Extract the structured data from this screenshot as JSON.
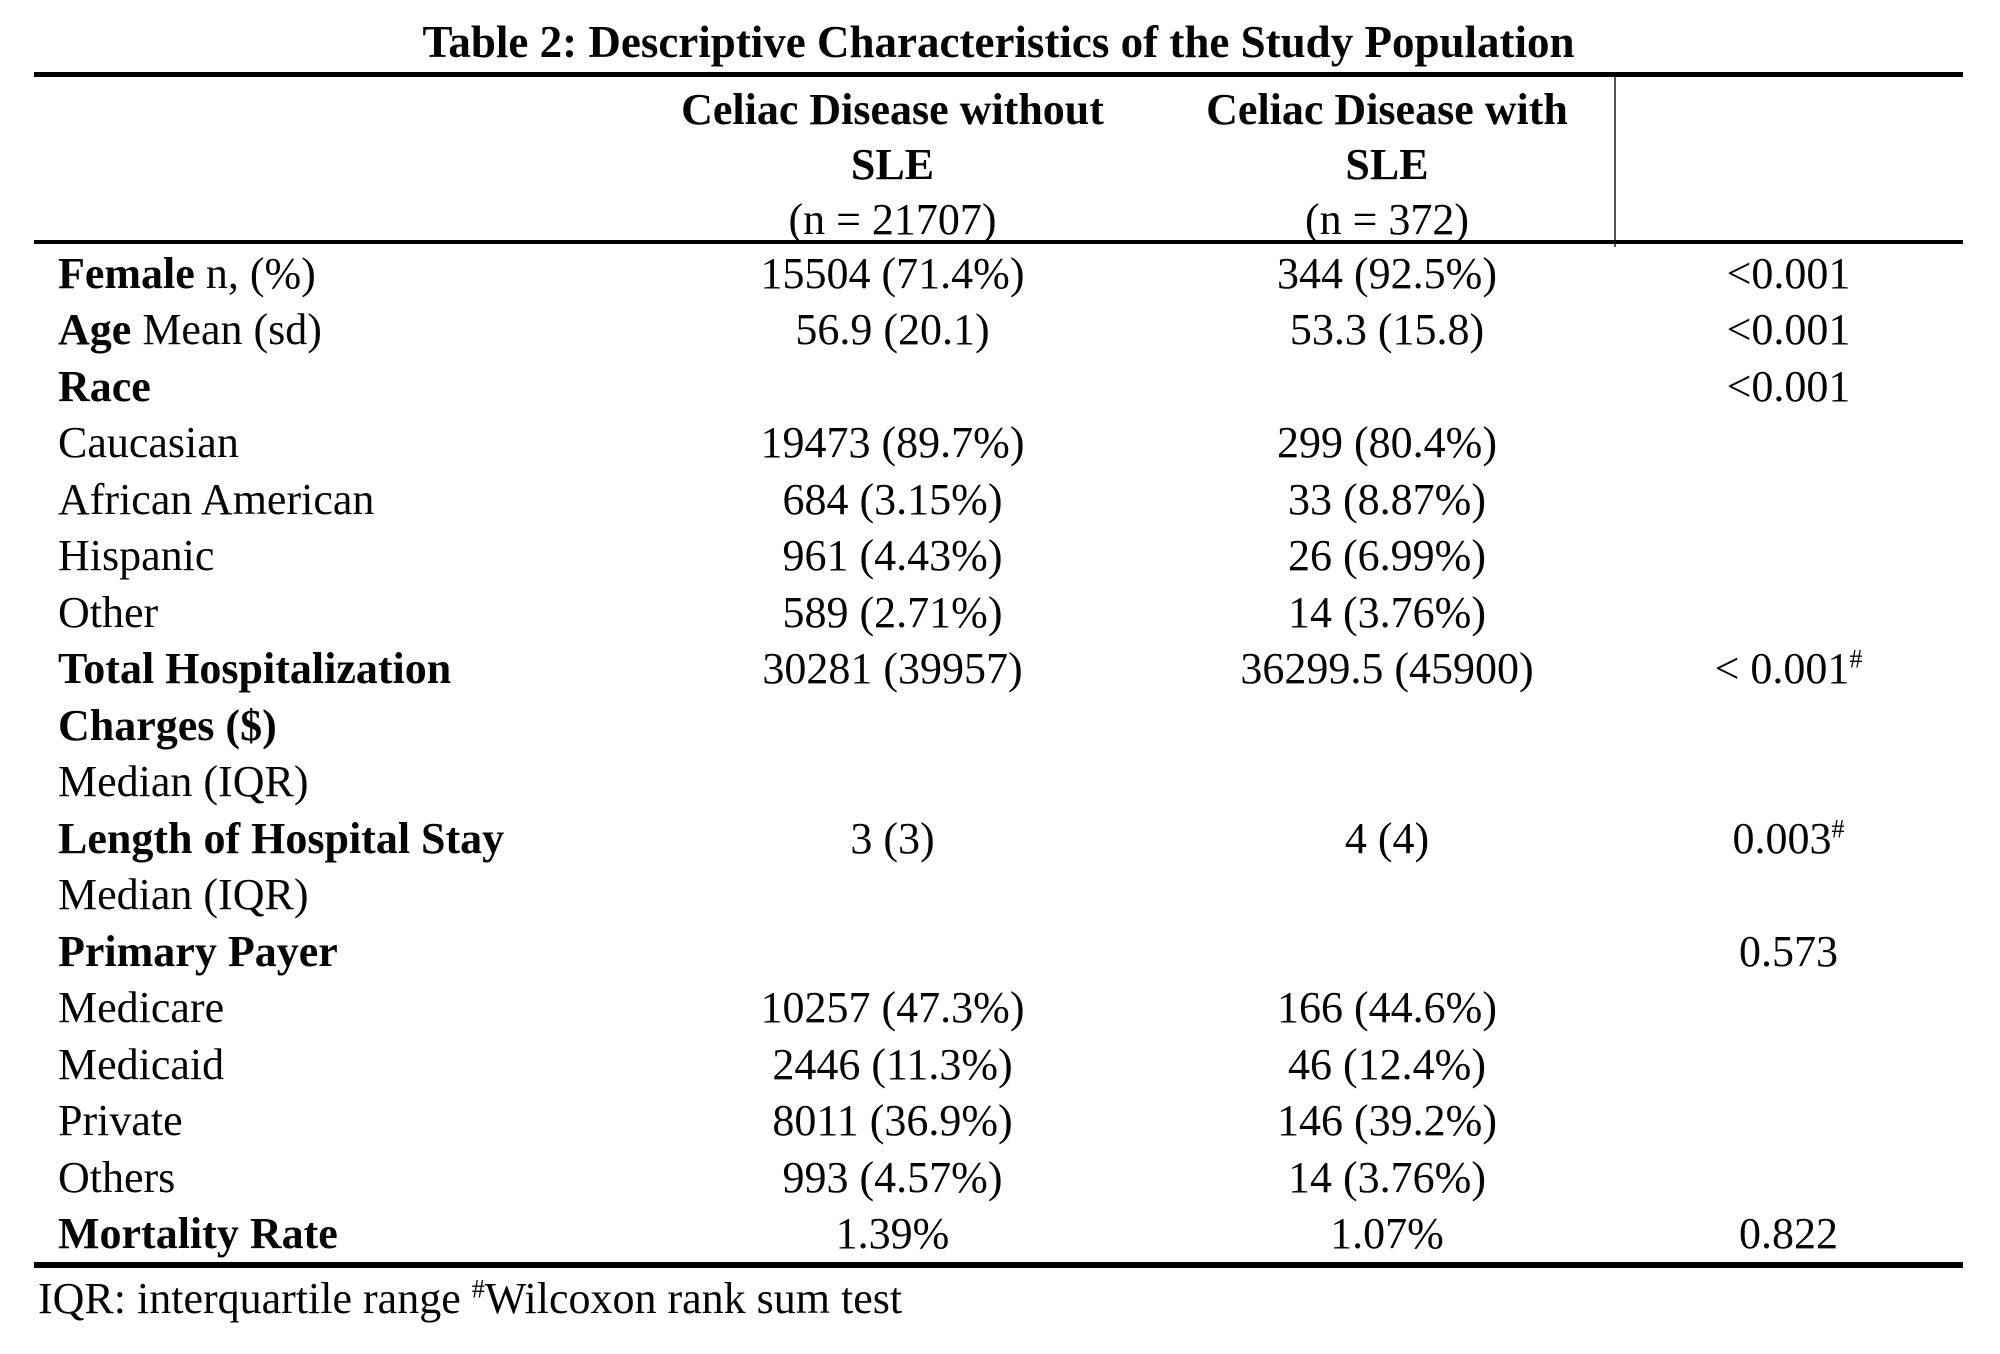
{
  "title": "Table 2: Descriptive Characteristics of the Study Population",
  "header": {
    "col_without": {
      "line1": "Celiac Disease without",
      "line2": "SLE",
      "line3": "(n = 21707)"
    },
    "col_with": {
      "line1": "Celiac Disease with",
      "line2": "SLE",
      "line3": "(n = 372)"
    }
  },
  "rows": [
    {
      "label_bold": "Female",
      "label_normal": " n, (%)",
      "col2": "15504 (71.4%)",
      "col3": "344 (92.5%)",
      "p": "<0.001",
      "p_sup": ""
    },
    {
      "label_bold": "Age",
      "label_normal": " Mean (sd)",
      "col2": "56.9 (20.1)",
      "col3": "53.3 (15.8)",
      "p": "<0.001",
      "p_sup": ""
    },
    {
      "label_bold": "Race",
      "label_normal": "",
      "col2": "",
      "col3": "",
      "p": "<0.001",
      "p_sup": ""
    },
    {
      "label_bold": "",
      "label_normal": "Caucasian",
      "col2": "19473 (89.7%)",
      "col3": "299 (80.4%)",
      "p": "",
      "p_sup": ""
    },
    {
      "label_bold": "",
      "label_normal": "African American",
      "col2": "684 (3.15%)",
      "col3": "33 (8.87%)",
      "p": "",
      "p_sup": ""
    },
    {
      "label_bold": "",
      "label_normal": "Hispanic",
      "col2": "961 (4.43%)",
      "col3": "26 (6.99%)",
      "p": "",
      "p_sup": ""
    },
    {
      "label_bold": "",
      "label_normal": "Other",
      "col2": "589 (2.71%)",
      "col3": "14 (3.76%)",
      "p": "",
      "p_sup": ""
    },
    {
      "label_bold": "Total Hospitalization",
      "label_normal": "",
      "col2": "30281 (39957)",
      "col3": "36299.5 (45900)",
      "p": "< 0.001",
      "p_sup": "#"
    },
    {
      "label_bold": "Charges ($)",
      "label_normal": "",
      "col2": "",
      "col3": "",
      "p": "",
      "p_sup": ""
    },
    {
      "label_bold": "",
      "label_normal": "Median (IQR)",
      "col2": "",
      "col3": "",
      "p": "",
      "p_sup": ""
    },
    {
      "label_bold": "Length of Hospital Stay",
      "label_normal": "",
      "col2": "3 (3)",
      "col3": "4 (4)",
      "p": "0.003",
      "p_sup": "#"
    },
    {
      "label_bold": "",
      "label_normal": "Median (IQR)",
      "col2": "",
      "col3": "",
      "p": "",
      "p_sup": ""
    },
    {
      "label_bold": "Primary Payer",
      "label_normal": "",
      "col2": "",
      "col3": "",
      "p": "0.573",
      "p_sup": ""
    },
    {
      "label_bold": "",
      "label_normal": "Medicare",
      "col2": "10257 (47.3%)",
      "col3": "166 (44.6%)",
      "p": "",
      "p_sup": ""
    },
    {
      "label_bold": "",
      "label_normal": "Medicaid",
      "col2": "2446 (11.3%)",
      "col3": "46 (12.4%)",
      "p": "",
      "p_sup": ""
    },
    {
      "label_bold": "",
      "label_normal": "Private",
      "col2": "8011 (36.9%)",
      "col3": "146 (39.2%)",
      "p": "",
      "p_sup": ""
    },
    {
      "label_bold": "",
      "label_normal": "Others",
      "col2": "993 (4.57%)",
      "col3": "14 (3.76%)",
      "p": "",
      "p_sup": ""
    },
    {
      "label_bold": "Mortality Rate",
      "label_normal": "",
      "col2": "1.39%",
      "col3": "1.07%",
      "p": "0.822",
      "p_sup": ""
    }
  ],
  "footnote": {
    "text": "IQR: interquartile range ",
    "sup": "#",
    "rest": "Wilcoxon rank sum test"
  },
  "colors": {
    "background": "#ffffff",
    "text": "#050505",
    "rule": "#000000"
  }
}
